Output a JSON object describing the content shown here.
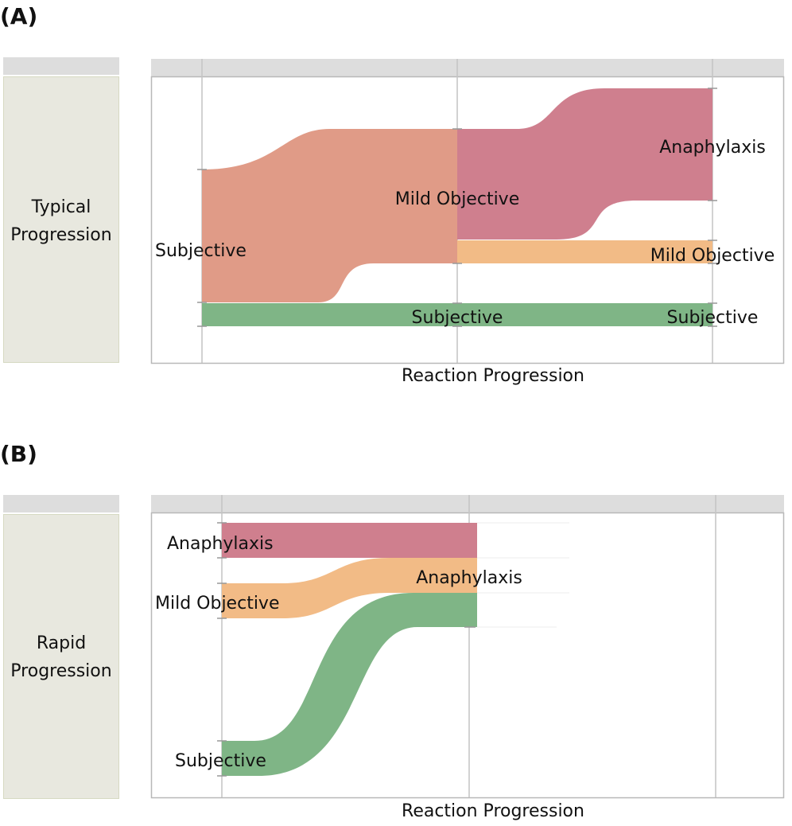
{
  "panels": {
    "a": {
      "letter": "(A)",
      "row_label_line1": "Typical",
      "row_label_line2": "Progression",
      "axis_title": "Reaction Progression",
      "nodes": {
        "stage1_subjective": "Subjective",
        "stage2_mild_objective": "Mild Objective",
        "stage2_subjective": "Subjective",
        "stage3_anaphylaxis": "Anaphylaxis",
        "stage3_mild_objective": "Mild Objective",
        "stage3_subjective": "Subjective"
      }
    },
    "b": {
      "letter": "(B)",
      "row_label_line1": "Rapid",
      "row_label_line2": "Progression",
      "axis_title": "Reaction Progression",
      "nodes": {
        "stage1_anaphylaxis": "Anaphylaxis",
        "stage1_mild_objective": "Mild Objective",
        "stage1_subjective": "Subjective",
        "stage2_anaphylaxis": "Anaphylaxis"
      }
    }
  },
  "colors": {
    "subjective_to_mild": "#e09b87",
    "anaphylaxis": "#cf7f8e",
    "mild_objective": "#f2bb86",
    "subjective": "#7fb586",
    "grid": "#c4c4c4",
    "header_bar": "#dddddd",
    "label_panel": "#e8e8df"
  }
}
